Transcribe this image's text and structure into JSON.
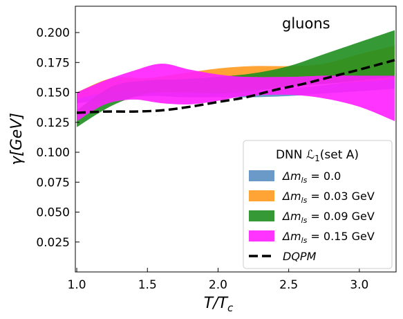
{
  "chart_data": {
    "type": "area",
    "annotation": "gluons",
    "xlabel": "T/T",
    "xlabel_sub": "c",
    "ylabel": "γ[GeV]",
    "xlim": [
      0.99,
      3.26
    ],
    "ylim": [
      0.0,
      0.222
    ],
    "x_ticks": [
      1.0,
      1.5,
      2.0,
      2.5,
      3.0
    ],
    "x_tick_labels": [
      "1.0",
      "1.5",
      "2.0",
      "2.5",
      "3.0"
    ],
    "y_ticks": [
      0.025,
      0.05,
      0.075,
      0.1,
      0.125,
      0.15,
      0.175,
      0.2
    ],
    "y_tick_labels": [
      "0.025",
      "0.050",
      "0.075",
      "0.100",
      "0.125",
      "0.150",
      "0.175",
      "0.200"
    ],
    "grid": false,
    "legend": {
      "title": "DNN ℒ",
      "title_sub": "1",
      "title_suffix": "(set A)",
      "placement": "lower-right",
      "entries": [
        {
          "label": "Δm",
          "sub": "ls",
          "suffix": " = 0.0"
        },
        {
          "label": "Δm",
          "sub": "ls",
          "suffix": " = 0.03 GeV"
        },
        {
          "label": "Δm",
          "sub": "ls",
          "suffix": " = 0.09 GeV"
        },
        {
          "label": "Δm",
          "sub": "ls",
          "suffix": " = 0.15 GeV"
        },
        {
          "label": "DQPM",
          "sub": "",
          "suffix": ""
        }
      ]
    },
    "bands": [
      {
        "name": "Δm_ls = 0.0",
        "color": "#5b8fc2",
        "x": [
          1.0,
          1.25,
          1.5,
          1.75,
          2.0,
          2.25,
          2.5,
          2.75,
          3.0,
          3.25
        ],
        "lower": [
          0.141,
          0.144,
          0.147,
          0.146,
          0.146,
          0.146,
          0.147,
          0.149,
          0.151,
          0.153
        ],
        "upper": [
          0.148,
          0.151,
          0.153,
          0.152,
          0.15,
          0.151,
          0.153,
          0.156,
          0.16,
          0.165
        ]
      },
      {
        "name": "Δm_ls = 0.03 GeV",
        "color": "#ff9a1f",
        "x": [
          1.0,
          1.25,
          1.5,
          1.75,
          2.0,
          2.25,
          2.5,
          2.75,
          3.0,
          3.25
        ],
        "lower": [
          0.145,
          0.15,
          0.15,
          0.15,
          0.152,
          0.153,
          0.155,
          0.157,
          0.159,
          0.161
        ],
        "upper": [
          0.15,
          0.162,
          0.162,
          0.166,
          0.17,
          0.172,
          0.172,
          0.174,
          0.182,
          0.189
        ]
      },
      {
        "name": "Δm_ls = 0.09 GeV",
        "color": "#1f8f1f",
        "x": [
          1.0,
          1.25,
          1.5,
          1.75,
          2.0,
          2.25,
          2.5,
          2.75,
          3.0,
          3.25
        ],
        "lower": [
          0.121,
          0.139,
          0.149,
          0.15,
          0.149,
          0.151,
          0.155,
          0.157,
          0.16,
          0.163
        ],
        "upper": [
          0.135,
          0.155,
          0.16,
          0.161,
          0.163,
          0.166,
          0.172,
          0.182,
          0.192,
          0.202
        ]
      },
      {
        "name": "Δm_ls = 0.15 GeV",
        "color": "#ff1fff",
        "x": [
          1.0,
          1.2,
          1.4,
          1.6,
          1.8,
          2.0,
          2.2,
          2.5,
          2.75,
          3.0,
          3.25
        ],
        "lower": [
          0.126,
          0.14,
          0.144,
          0.141,
          0.14,
          0.143,
          0.147,
          0.148,
          0.145,
          0.138,
          0.126
        ],
        "upper": [
          0.15,
          0.16,
          0.168,
          0.174,
          0.169,
          0.165,
          0.163,
          0.163,
          0.164,
          0.164,
          0.164
        ]
      }
    ],
    "line": {
      "name": "DQPM",
      "color": "#000000",
      "style": "dashed",
      "x": [
        1.0,
        1.2,
        1.4,
        1.6,
        1.8,
        2.0,
        2.2,
        2.4,
        2.6,
        2.8,
        3.0,
        3.25
      ],
      "y": [
        0.133,
        0.134,
        0.134,
        0.135,
        0.138,
        0.142,
        0.146,
        0.152,
        0.157,
        0.163,
        0.169,
        0.177
      ]
    }
  }
}
